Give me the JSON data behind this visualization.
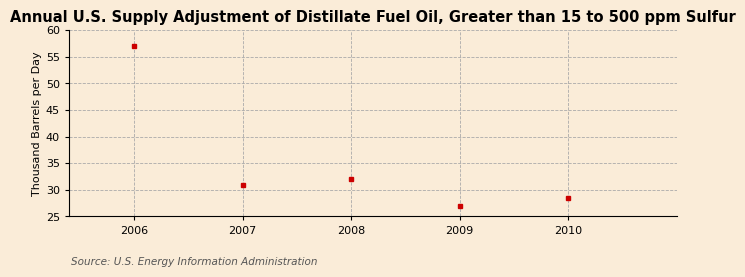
{
  "title": "Annual U.S. Supply Adjustment of Distillate Fuel Oil, Greater than 15 to 500 ppm Sulfur",
  "ylabel": "Thousand Barrels per Day",
  "source": "Source: U.S. Energy Information Administration",
  "x_values": [
    2006,
    2007,
    2008,
    2009,
    2010
  ],
  "y_values": [
    57,
    31,
    32,
    27,
    28.5
  ],
  "marker_color": "#cc0000",
  "background_color": "#faecd8",
  "plot_bg_color": "#faecd8",
  "ylim": [
    25,
    60
  ],
  "yticks": [
    25,
    30,
    35,
    40,
    45,
    50,
    55,
    60
  ],
  "xlim": [
    2005.4,
    2011.0
  ],
  "xticks": [
    2006,
    2007,
    2008,
    2009,
    2010
  ],
  "title_fontsize": 10.5,
  "label_fontsize": 8,
  "tick_fontsize": 8,
  "source_fontsize": 7.5
}
